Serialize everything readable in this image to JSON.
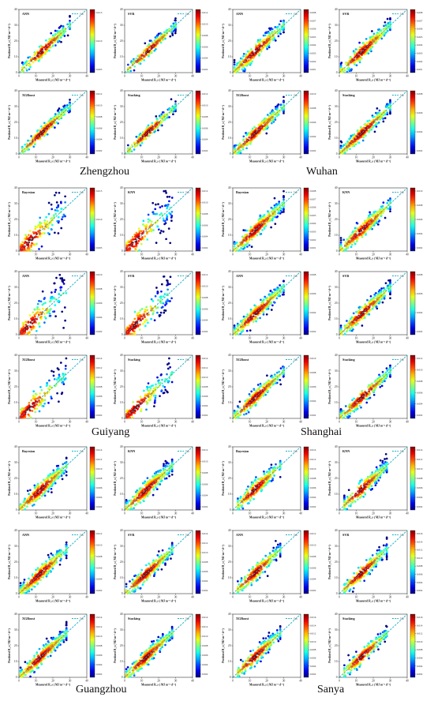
{
  "figure": {
    "axis_xlabel": "Measured R_s ( MJ m⁻² d⁻¹)",
    "axis_ylabel": "Predicted R_s ( MJ m⁻² d⁻¹)",
    "legend_label": "1:1",
    "colors": {
      "line11": "#1ab0c8",
      "point_low": "#0a14b4",
      "point_high": "#d41010"
    }
  },
  "cities": [
    {
      "name": "Zhengzhou"
    },
    {
      "name": "Wuhan"
    },
    {
      "name": "Guiyang"
    },
    {
      "name": "Shanghai"
    },
    {
      "name": "Guangzhou"
    },
    {
      "name": "Sanya"
    }
  ],
  "chart_data": [
    {
      "type": "scatter",
      "city": "Zhengzhou",
      "title": "ANN",
      "xlim": [
        0,
        40
      ],
      "ylim": [
        0,
        40
      ],
      "xticks": [
        0,
        10,
        20,
        30,
        40
      ],
      "yticks": [
        0,
        10,
        20,
        30,
        40
      ],
      "colorbar_ticks": [
        "0.015",
        "0.010",
        "0.005"
      ],
      "x_range": [
        2,
        30
      ],
      "spread": 2.2,
      "n": 240
    },
    {
      "type": "scatter",
      "city": "Zhengzhou",
      "title": "SVR",
      "xlim": [
        0,
        40
      ],
      "ylim": [
        0,
        40
      ],
      "xticks": [
        0,
        10,
        20,
        30,
        40
      ],
      "yticks": [
        0,
        10,
        20,
        30,
        40
      ],
      "colorbar_ticks": [
        "0.012",
        "0.010",
        "0.008",
        "0.006",
        "0.004",
        "0.002"
      ],
      "x_range": [
        2,
        30
      ],
      "spread": 1.8,
      "n": 240
    },
    {
      "type": "scatter",
      "city": "Wuhan",
      "title": "ANN",
      "xlim": [
        0,
        40
      ],
      "ylim": [
        0,
        40
      ],
      "xticks": [
        0,
        10,
        20,
        30,
        40
      ],
      "yticks": [
        0,
        10,
        20,
        30,
        40
      ],
      "colorbar_ticks": [
        "0.008",
        "0.007",
        "0.006",
        "0.005",
        "0.004",
        "0.003",
        "0.002",
        "0.001"
      ],
      "x_range": [
        1,
        30
      ],
      "spread": 2.5,
      "n": 320
    },
    {
      "type": "scatter",
      "city": "Wuhan",
      "title": "SVR",
      "xlim": [
        0,
        40
      ],
      "ylim": [
        0,
        40
      ],
      "xticks": [
        0,
        10,
        20,
        30,
        40
      ],
      "yticks": [
        0,
        10,
        20,
        30,
        40
      ],
      "colorbar_ticks": [
        "0.008",
        "0.007",
        "0.006",
        "0.005",
        "0.004",
        "0.003",
        "0.002",
        "0.001"
      ],
      "x_range": [
        1,
        30
      ],
      "spread": 2.4,
      "n": 320
    },
    {
      "type": "scatter",
      "city": "Zhengzhou",
      "title": "XGBoost",
      "xlim": [
        0,
        40
      ],
      "ylim": [
        0,
        40
      ],
      "xticks": [
        0,
        10,
        20,
        30,
        40
      ],
      "yticks": [
        0,
        10,
        20,
        30,
        40
      ],
      "colorbar_ticks": [
        "0.012",
        "0.010",
        "0.008",
        "0.006",
        "0.004",
        "0.002"
      ],
      "x_range": [
        2,
        30
      ],
      "spread": 2.0,
      "n": 240
    },
    {
      "type": "scatter",
      "city": "Zhengzhou",
      "title": "Stacking",
      "xlim": [
        0,
        40
      ],
      "ylim": [
        0,
        40
      ],
      "xticks": [
        0,
        10,
        20,
        30,
        40
      ],
      "yticks": [
        0,
        10,
        20,
        30,
        40
      ],
      "colorbar_ticks": [
        "0.012",
        "0.010",
        "0.008",
        "0.006",
        "0.004",
        "0.002"
      ],
      "x_range": [
        2,
        30
      ],
      "spread": 1.8,
      "n": 240
    },
    {
      "type": "scatter",
      "city": "Wuhan",
      "title": "XGBoost",
      "xlim": [
        0,
        40
      ],
      "ylim": [
        0,
        40
      ],
      "xticks": [
        0,
        10,
        20,
        30,
        40
      ],
      "yticks": [
        0,
        10,
        20,
        30,
        40
      ],
      "colorbar_ticks": [
        "0.010",
        "0.008",
        "0.006",
        "0.004",
        "0.002"
      ],
      "x_range": [
        1,
        30
      ],
      "spread": 2.3,
      "n": 320
    },
    {
      "type": "scatter",
      "city": "Wuhan",
      "title": "Stacking",
      "xlim": [
        0,
        40
      ],
      "ylim": [
        0,
        40
      ],
      "xticks": [
        0,
        10,
        20,
        30,
        40
      ],
      "yticks": [
        0,
        10,
        20,
        30,
        40
      ],
      "colorbar_ticks": [
        "0.008",
        "0.006",
        "0.004",
        "0.002"
      ],
      "x_range": [
        1,
        30
      ],
      "spread": 2.2,
      "n": 320
    },
    {
      "type": "scatter",
      "city": "Guiyang",
      "title": "Bayesian",
      "xlim": [
        0,
        40
      ],
      "ylim": [
        0,
        40
      ],
      "xticks": [
        0,
        10,
        20,
        30,
        40
      ],
      "yticks": [
        0,
        10,
        20,
        30,
        40
      ],
      "colorbar_ticks": [
        "0.015",
        "0.010",
        "0.005"
      ],
      "x_range": [
        1,
        28
      ],
      "spread": 4.5,
      "n": 180,
      "sparse": true
    },
    {
      "type": "scatter",
      "city": "Guiyang",
      "title": "KNN",
      "xlim": [
        0,
        40
      ],
      "ylim": [
        0,
        40
      ],
      "xticks": [
        0,
        10,
        20,
        30,
        40
      ],
      "yticks": [
        0,
        10,
        20,
        30,
        40
      ],
      "colorbar_ticks": [
        "0.012",
        "0.010",
        "0.008",
        "0.006",
        "0.004",
        "0.002"
      ],
      "x_range": [
        1,
        28
      ],
      "spread": 4.5,
      "n": 180,
      "sparse": true
    },
    {
      "type": "scatter",
      "city": "Shanghai",
      "title": "Bayesian",
      "xlim": [
        0,
        40
      ],
      "ylim": [
        0,
        40
      ],
      "xticks": [
        0,
        10,
        20,
        30,
        40
      ],
      "yticks": [
        0,
        10,
        20,
        30,
        40
      ],
      "colorbar_ticks": [
        "0.008",
        "0.007",
        "0.006",
        "0.005",
        "0.004",
        "0.003",
        "0.002",
        "0.001"
      ],
      "x_range": [
        1,
        30
      ],
      "spread": 2.6,
      "n": 320
    },
    {
      "type": "scatter",
      "city": "Shanghai",
      "title": "KNN",
      "xlim": [
        0,
        40
      ],
      "ylim": [
        0,
        40
      ],
      "xticks": [
        0,
        10,
        20,
        30,
        40
      ],
      "yticks": [
        0,
        10,
        20,
        30,
        40
      ],
      "colorbar_ticks": [
        "0.010",
        "0.008",
        "0.006",
        "0.004",
        "0.002"
      ],
      "x_range": [
        1,
        30
      ],
      "spread": 2.6,
      "n": 320
    },
    {
      "type": "scatter",
      "city": "Guiyang",
      "title": "ANN",
      "xlim": [
        0,
        40
      ],
      "ylim": [
        0,
        40
      ],
      "xticks": [
        0,
        10,
        20,
        30,
        40
      ],
      "yticks": [
        0,
        10,
        20,
        30,
        40
      ],
      "colorbar_ticks": [
        "0.010",
        "0.008",
        "0.006",
        "0.004",
        "0.002"
      ],
      "x_range": [
        1,
        28
      ],
      "spread": 4.2,
      "n": 180,
      "sparse": true
    },
    {
      "type": "scatter",
      "city": "Guiyang",
      "title": "SVR",
      "xlim": [
        0,
        40
      ],
      "ylim": [
        0,
        40
      ],
      "xticks": [
        0,
        10,
        20,
        30,
        40
      ],
      "yticks": [
        0,
        10,
        20,
        30,
        40
      ],
      "colorbar_ticks": [
        "0.012",
        "0.010",
        "0.008",
        "0.006",
        "0.004",
        "0.002"
      ],
      "x_range": [
        1,
        28
      ],
      "spread": 4.2,
      "n": 180,
      "sparse": true
    },
    {
      "type": "scatter",
      "city": "Shanghai",
      "title": "ANN",
      "xlim": [
        0,
        40
      ],
      "ylim": [
        0,
        40
      ],
      "xticks": [
        0,
        10,
        20,
        30,
        40
      ],
      "yticks": [
        0,
        10,
        20,
        30,
        40
      ],
      "colorbar_ticks": [
        "0.008",
        "0.006",
        "0.004",
        "0.002"
      ],
      "x_range": [
        1,
        30
      ],
      "spread": 2.4,
      "n": 320
    },
    {
      "type": "scatter",
      "city": "Shanghai",
      "title": "SVR",
      "xlim": [
        0,
        40
      ],
      "ylim": [
        0,
        40
      ],
      "xticks": [
        0,
        10,
        20,
        30,
        40
      ],
      "yticks": [
        0,
        10,
        20,
        30,
        40
      ],
      "colorbar_ticks": [
        "0.008",
        "0.006",
        "0.004",
        "0.002"
      ],
      "x_range": [
        1,
        30
      ],
      "spread": 2.3,
      "n": 320
    },
    {
      "type": "scatter",
      "city": "Guiyang",
      "title": "XGBoost",
      "xlim": [
        0,
        40
      ],
      "ylim": [
        0,
        40
      ],
      "xticks": [
        0,
        10,
        20,
        30,
        40
      ],
      "yticks": [
        0,
        10,
        20,
        30,
        40
      ],
      "colorbar_ticks": [
        "0.014",
        "0.012",
        "0.010",
        "0.008",
        "0.006",
        "0.004",
        "0.002"
      ],
      "x_range": [
        1,
        28
      ],
      "spread": 4.0,
      "n": 180,
      "sparse": true
    },
    {
      "type": "scatter",
      "city": "Guiyang",
      "title": "Stacking",
      "xlim": [
        0,
        40
      ],
      "ylim": [
        0,
        40
      ],
      "xticks": [
        0,
        10,
        20,
        30,
        40
      ],
      "yticks": [
        0,
        10,
        20,
        30,
        40
      ],
      "colorbar_ticks": [
        "0.014",
        "0.012",
        "0.010",
        "0.008",
        "0.006",
        "0.004",
        "0.002"
      ],
      "x_range": [
        1,
        28
      ],
      "spread": 3.8,
      "n": 180,
      "sparse": true
    },
    {
      "type": "scatter",
      "city": "Shanghai",
      "title": "XGBoost",
      "xlim": [
        0,
        40
      ],
      "ylim": [
        0,
        40
      ],
      "xticks": [
        0,
        10,
        20,
        30,
        40
      ],
      "yticks": [
        0,
        10,
        20,
        30,
        40
      ],
      "colorbar_ticks": [
        "0.010",
        "0.008",
        "0.006",
        "0.004",
        "0.002"
      ],
      "x_range": [
        1,
        30
      ],
      "spread": 2.3,
      "n": 320
    },
    {
      "type": "scatter",
      "city": "Shanghai",
      "title": "Stacking",
      "xlim": [
        0,
        40
      ],
      "ylim": [
        0,
        40
      ],
      "xticks": [
        0,
        10,
        20,
        30,
        40
      ],
      "yticks": [
        0,
        10,
        20,
        30,
        40
      ],
      "colorbar_ticks": [
        "0.012",
        "0.010",
        "0.008",
        "0.006",
        "0.004",
        "0.002"
      ],
      "x_range": [
        1,
        30
      ],
      "spread": 2.2,
      "n": 320
    },
    {
      "type": "scatter",
      "city": "Guangzhou",
      "title": "Bayesian",
      "xlim": [
        0,
        40
      ],
      "ylim": [
        0,
        40
      ],
      "xticks": [
        0,
        10,
        20,
        30,
        40
      ],
      "yticks": [
        0,
        10,
        20,
        30,
        40
      ],
      "colorbar_ticks": [
        "0.014",
        "0.012",
        "0.010",
        "0.008",
        "0.006",
        "0.004",
        "0.002"
      ],
      "x_range": [
        1,
        28
      ],
      "spread": 2.6,
      "n": 340
    },
    {
      "type": "scatter",
      "city": "Guangzhou",
      "title": "KNN",
      "xlim": [
        0,
        40
      ],
      "ylim": [
        0,
        40
      ],
      "xticks": [
        0,
        10,
        20,
        30,
        40
      ],
      "yticks": [
        0,
        10,
        20,
        30,
        40
      ],
      "colorbar_ticks": [
        "0.012",
        "0.010",
        "0.008",
        "0.006",
        "0.004",
        "0.002"
      ],
      "x_range": [
        1,
        28
      ],
      "spread": 2.6,
      "n": 340
    },
    {
      "type": "scatter",
      "city": "Sanya",
      "title": "Bayesian",
      "xlim": [
        0,
        40
      ],
      "ylim": [
        0,
        40
      ],
      "xticks": [
        0,
        10,
        20,
        30,
        40
      ],
      "yticks": [
        0,
        10,
        20,
        30,
        40
      ],
      "colorbar_ticks": [
        "0.014",
        "0.012",
        "0.010",
        "0.008",
        "0.006",
        "0.004",
        "0.002"
      ],
      "x_range": [
        3,
        28
      ],
      "spread": 2.6,
      "n": 260
    },
    {
      "type": "scatter",
      "city": "Sanya",
      "title": "KNN",
      "xlim": [
        0,
        40
      ],
      "ylim": [
        0,
        40
      ],
      "xticks": [
        0,
        10,
        20,
        30,
        40
      ],
      "yticks": [
        0,
        10,
        20,
        30,
        40
      ],
      "colorbar_ticks": [
        "0.014",
        "0.012",
        "0.010",
        "0.008",
        "0.006",
        "0.004",
        "0.002"
      ],
      "x_range": [
        3,
        28
      ],
      "spread": 2.6,
      "n": 260
    },
    {
      "type": "scatter",
      "city": "Guangzhou",
      "title": "ANN",
      "xlim": [
        0,
        40
      ],
      "ylim": [
        0,
        40
      ],
      "xticks": [
        0,
        10,
        20,
        30,
        40
      ],
      "yticks": [
        0,
        10,
        20,
        30,
        40
      ],
      "colorbar_ticks": [
        "0.012",
        "0.010",
        "0.008",
        "0.006",
        "0.004",
        "0.002"
      ],
      "x_range": [
        1,
        28
      ],
      "spread": 2.5,
      "n": 340
    },
    {
      "type": "scatter",
      "city": "Guangzhou",
      "title": "SVR",
      "xlim": [
        0,
        40
      ],
      "ylim": [
        0,
        40
      ],
      "xticks": [
        0,
        10,
        20,
        30,
        40
      ],
      "yticks": [
        0,
        10,
        20,
        30,
        40
      ],
      "colorbar_ticks": [
        "0.014",
        "0.012",
        "0.010",
        "0.008",
        "0.006",
        "0.004",
        "0.002"
      ],
      "x_range": [
        1,
        28
      ],
      "spread": 2.4,
      "n": 340
    },
    {
      "type": "scatter",
      "city": "Sanya",
      "title": "ANN",
      "xlim": [
        0,
        40
      ],
      "ylim": [
        0,
        40
      ],
      "xticks": [
        0,
        10,
        20,
        30,
        40
      ],
      "yticks": [
        0,
        10,
        20,
        30,
        40
      ],
      "colorbar_ticks": [
        "0.012",
        "0.010",
        "0.008",
        "0.006",
        "0.004",
        "0.002"
      ],
      "x_range": [
        3,
        28
      ],
      "spread": 2.5,
      "n": 260
    },
    {
      "type": "scatter",
      "city": "Sanya",
      "title": "SVR",
      "xlim": [
        0,
        40
      ],
      "ylim": [
        0,
        40
      ],
      "xticks": [
        0,
        10,
        20,
        30,
        40
      ],
      "yticks": [
        0,
        10,
        20,
        30,
        40
      ],
      "colorbar_ticks": [
        "0.016",
        "0.014",
        "0.012",
        "0.010",
        "0.008",
        "0.006",
        "0.004",
        "0.002"
      ],
      "x_range": [
        3,
        28
      ],
      "spread": 2.4,
      "n": 260
    },
    {
      "type": "scatter",
      "city": "Guangzhou",
      "title": "XGBoost",
      "xlim": [
        0,
        40
      ],
      "ylim": [
        0,
        40
      ],
      "xticks": [
        0,
        10,
        20,
        30,
        40
      ],
      "yticks": [
        0,
        10,
        20,
        30,
        40
      ],
      "colorbar_ticks": [
        "0.014",
        "0.012",
        "0.010",
        "0.008",
        "0.006",
        "0.004",
        "0.002"
      ],
      "x_range": [
        1,
        28
      ],
      "spread": 2.4,
      "n": 340
    },
    {
      "type": "scatter",
      "city": "Guangzhou",
      "title": "Stacking",
      "xlim": [
        0,
        40
      ],
      "ylim": [
        0,
        40
      ],
      "xticks": [
        0,
        10,
        20,
        30,
        40
      ],
      "yticks": [
        0,
        10,
        20,
        30,
        40
      ],
      "colorbar_ticks": [
        "0.014",
        "0.012",
        "0.010",
        "0.008",
        "0.006",
        "0.004",
        "0.002"
      ],
      "x_range": [
        1,
        28
      ],
      "spread": 2.3,
      "n": 340
    },
    {
      "type": "scatter",
      "city": "Sanya",
      "title": "XGBoost",
      "xlim": [
        0,
        40
      ],
      "ylim": [
        0,
        40
      ],
      "xticks": [
        0,
        10,
        20,
        30,
        40
      ],
      "yticks": [
        0,
        10,
        20,
        30,
        40
      ],
      "colorbar_ticks": [
        "0.016",
        "0.014",
        "0.012",
        "0.010",
        "0.008",
        "0.006",
        "0.004",
        "0.002"
      ],
      "x_range": [
        3,
        28
      ],
      "spread": 2.4,
      "n": 260
    },
    {
      "type": "scatter",
      "city": "Sanya",
      "title": "Stacking",
      "xlim": [
        0,
        40
      ],
      "ylim": [
        0,
        40
      ],
      "xticks": [
        0,
        10,
        20,
        30,
        40
      ],
      "yticks": [
        0,
        10,
        20,
        30,
        40
      ],
      "colorbar_ticks": [
        "0.016",
        "0.014",
        "0.012",
        "0.010",
        "0.008",
        "0.006",
        "0.004",
        "0.002"
      ],
      "x_range": [
        3,
        28
      ],
      "spread": 2.3,
      "n": 260
    }
  ]
}
